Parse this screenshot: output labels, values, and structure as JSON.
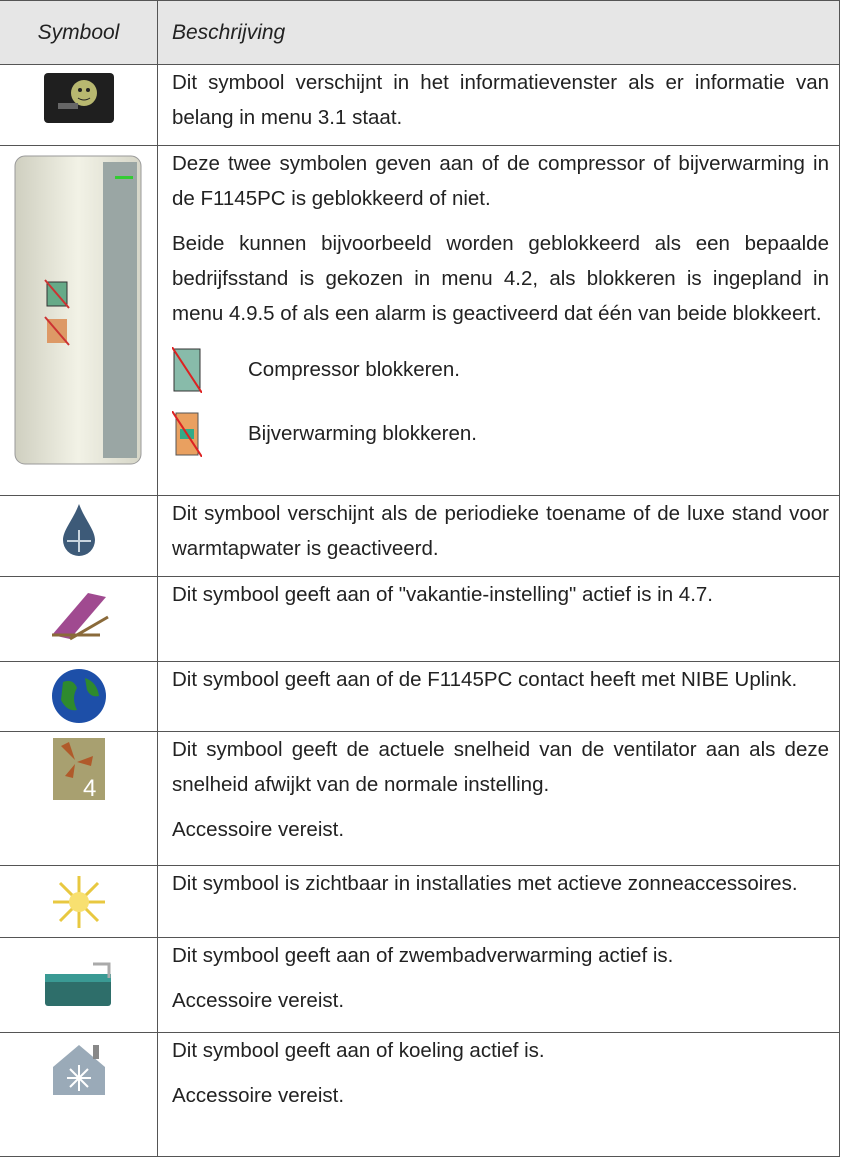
{
  "table": {
    "header": {
      "symbol": "Symbool",
      "description": "Beschrijving"
    },
    "rows": [
      {
        "paragraphs": [
          "Dit symbool verschijnt in het informatievenster als er informatie van belang in menu 3.1 staat."
        ]
      },
      {
        "paragraphs": [
          "Deze twee symbolen geven aan of de compressor of bijverwarming in de F1145PC is geblokkeerd of niet.",
          "Beide kunnen bijvoorbeeld worden geblokkeerd als een bepaalde bedrijfsstand is gekozen in menu 4.2, als blokkeren is ingepland in menu 4.9.5 of als een alarm is geactiveerd dat één van beide blokkeert."
        ],
        "items": [
          "Compressor blokkeren.",
          "Bijverwarming blokkeren."
        ]
      },
      {
        "paragraphs": [
          "Dit symbool verschijnt als de periodieke toename of de luxe stand voor warmtapwater is geactiveerd."
        ]
      },
      {
        "paragraphs": [
          "Dit symbool geeft aan of \"vakantie-instelling\" actief is in 4.7."
        ]
      },
      {
        "paragraphs": [
          "Dit symbool geeft aan of de F1145PC contact heeft met NIBE Uplink."
        ]
      },
      {
        "paragraphs": [
          "Dit symbool geeft de actuele snelheid van de ventilator aan als deze snelheid afwijkt van de normale instelling.",
          "Accessoire vereist."
        ]
      },
      {
        "paragraphs": [
          "Dit symbool is zichtbaar in installaties met actieve zonneaccessoires."
        ]
      },
      {
        "paragraphs": [
          "Dit symbool geeft aan of zwembadverwarming actief is.",
          "Accessoire vereist."
        ]
      },
      {
        "paragraphs": [
          "Dit symbool geeft aan of koeling actief is.",
          "Accessoire vereist."
        ]
      }
    ]
  }
}
